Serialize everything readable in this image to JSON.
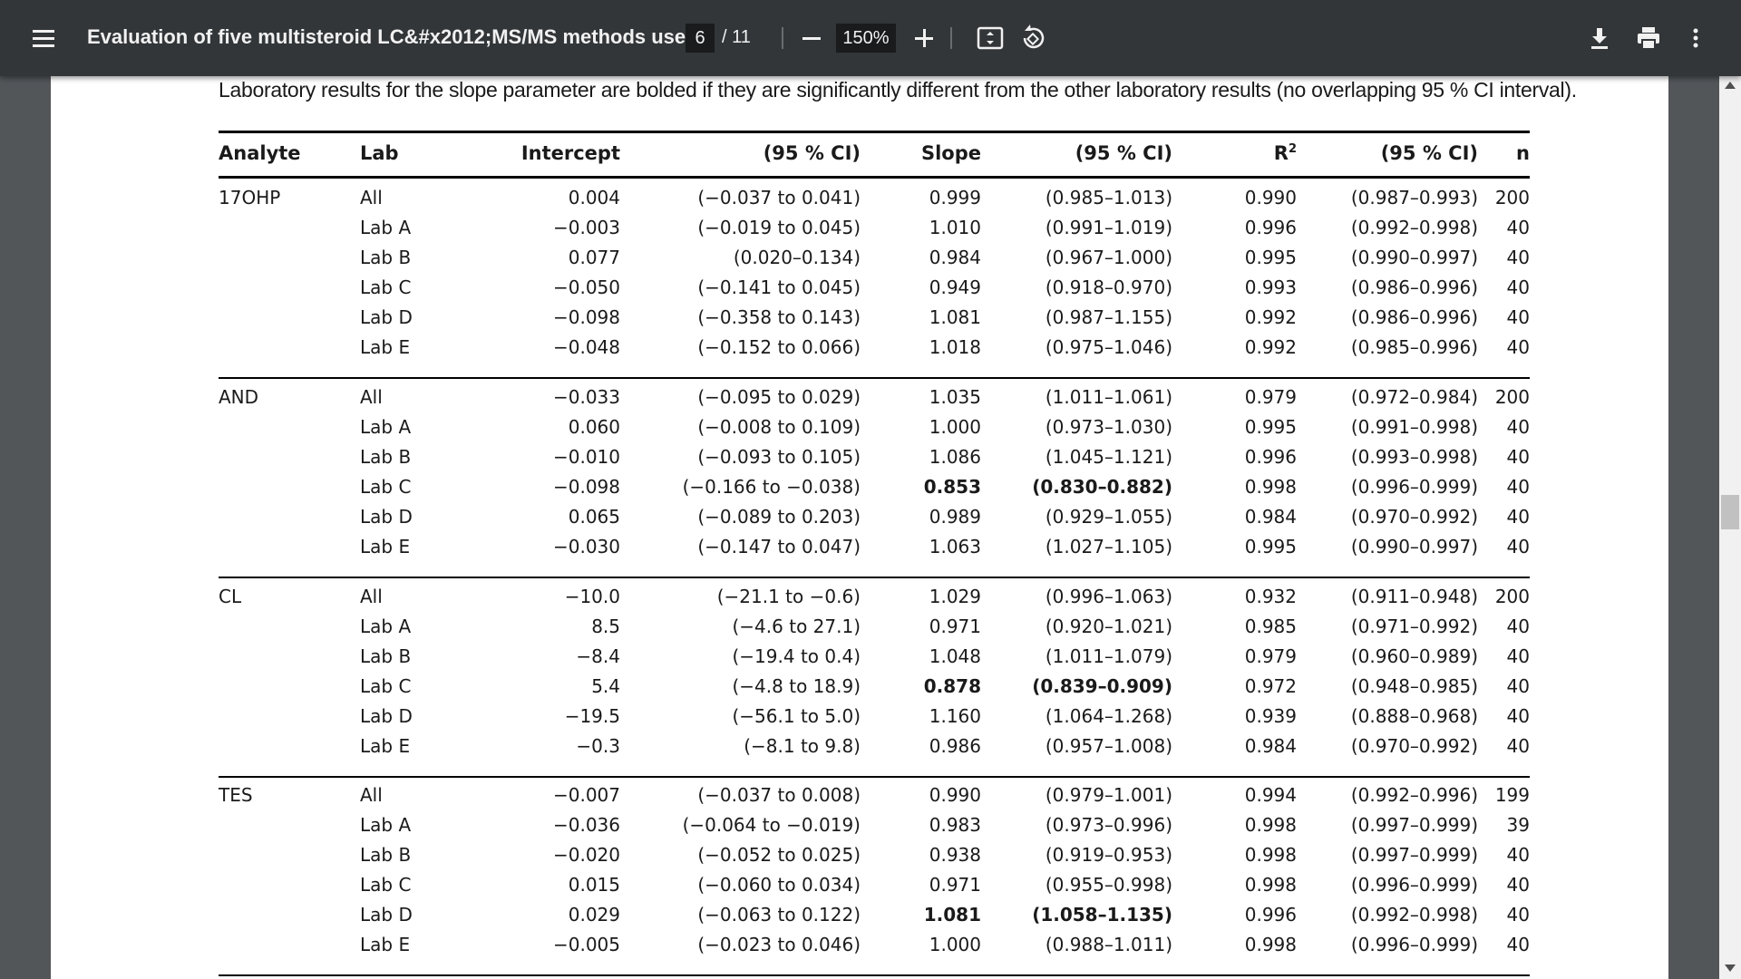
{
  "toolbar": {
    "title": "Evaluation of five multisteroid LC&#x2012;MS/MS methods used...",
    "page_current": "6",
    "page_total": "/ 11",
    "zoom": "150%",
    "icons": [
      "menu-icon",
      "zoom-out-icon",
      "zoom-in-icon",
      "fit-page-icon",
      "rotate-icon",
      "download-icon",
      "print-icon",
      "more-options-icon"
    ]
  },
  "caption": "Laboratory results for the slope parameter are bolded if they are significantly different from the other laboratory results (no overlapping 95 % CI interval).",
  "table": {
    "headers": [
      "Analyte",
      "Lab",
      "Intercept",
      "(95 % CI)",
      "Slope",
      "(95 % CI)",
      "R",
      "2",
      "(95 % CI)",
      "n"
    ],
    "groups": [
      {
        "analyte": "17OHP",
        "rows": [
          {
            "lab": "All",
            "intercept": "0.004",
            "intercept_ci": "(−0.037 to 0.041)",
            "slope": "0.999",
            "slope_ci": "(0.985–1.013)",
            "r2": "0.990",
            "r2_ci": "(0.987–0.993)",
            "n": "200",
            "bold": false
          },
          {
            "lab": "Lab A",
            "intercept": "−0.003",
            "intercept_ci": "(−0.019 to 0.045)",
            "slope": "1.010",
            "slope_ci": "(0.991–1.019)",
            "r2": "0.996",
            "r2_ci": "(0.992–0.998)",
            "n": "40",
            "bold": false
          },
          {
            "lab": "Lab B",
            "intercept": "0.077",
            "intercept_ci": "(0.020–0.134)",
            "slope": "0.984",
            "slope_ci": "(0.967–1.000)",
            "r2": "0.995",
            "r2_ci": "(0.990–0.997)",
            "n": "40",
            "bold": false
          },
          {
            "lab": "Lab C",
            "intercept": "−0.050",
            "intercept_ci": "(−0.141 to 0.045)",
            "slope": "0.949",
            "slope_ci": "(0.918–0.970)",
            "r2": "0.993",
            "r2_ci": "(0.986–0.996)",
            "n": "40",
            "bold": false
          },
          {
            "lab": "Lab D",
            "intercept": "−0.098",
            "intercept_ci": "(−0.358 to 0.143)",
            "slope": "1.081",
            "slope_ci": "(0.987–1.155)",
            "r2": "0.992",
            "r2_ci": "(0.986–0.996)",
            "n": "40",
            "bold": false
          },
          {
            "lab": "Lab E",
            "intercept": "−0.048",
            "intercept_ci": "(−0.152 to 0.066)",
            "slope": "1.018",
            "slope_ci": "(0.975–1.046)",
            "r2": "0.992",
            "r2_ci": "(0.985–0.996)",
            "n": "40",
            "bold": false
          }
        ]
      },
      {
        "analyte": "AND",
        "rows": [
          {
            "lab": "All",
            "intercept": "−0.033",
            "intercept_ci": "(−0.095 to 0.029)",
            "slope": "1.035",
            "slope_ci": "(1.011–1.061)",
            "r2": "0.979",
            "r2_ci": "(0.972–0.984)",
            "n": "200",
            "bold": false
          },
          {
            "lab": "Lab A",
            "intercept": "0.060",
            "intercept_ci": "(−0.008 to 0.109)",
            "slope": "1.000",
            "slope_ci": "(0.973–1.030)",
            "r2": "0.995",
            "r2_ci": "(0.991–0.998)",
            "n": "40",
            "bold": false
          },
          {
            "lab": "Lab B",
            "intercept": "−0.010",
            "intercept_ci": "(−0.093 to 0.105)",
            "slope": "1.086",
            "slope_ci": "(1.045–1.121)",
            "r2": "0.996",
            "r2_ci": "(0.993–0.998)",
            "n": "40",
            "bold": false
          },
          {
            "lab": "Lab C",
            "intercept": "−0.098",
            "intercept_ci": "(−0.166 to −0.038)",
            "slope": "0.853",
            "slope_ci": "(0.830–0.882)",
            "r2": "0.998",
            "r2_ci": "(0.996–0.999)",
            "n": "40",
            "bold": true
          },
          {
            "lab": "Lab D",
            "intercept": "0.065",
            "intercept_ci": "(−0.089 to 0.203)",
            "slope": "0.989",
            "slope_ci": "(0.929–1.055)",
            "r2": "0.984",
            "r2_ci": "(0.970–0.992)",
            "n": "40",
            "bold": false
          },
          {
            "lab": "Lab E",
            "intercept": "−0.030",
            "intercept_ci": "(−0.147 to 0.047)",
            "slope": "1.063",
            "slope_ci": "(1.027–1.105)",
            "r2": "0.995",
            "r2_ci": "(0.990–0.997)",
            "n": "40",
            "bold": false
          }
        ]
      },
      {
        "analyte": "CL",
        "rows": [
          {
            "lab": "All",
            "intercept": "−10.0",
            "intercept_ci": "(−21.1 to −0.6)",
            "slope": "1.029",
            "slope_ci": "(0.996–1.063)",
            "r2": "0.932",
            "r2_ci": "(0.911–0.948)",
            "n": "200",
            "bold": false
          },
          {
            "lab": "Lab A",
            "intercept": "8.5",
            "intercept_ci": "(−4.6 to 27.1)",
            "slope": "0.971",
            "slope_ci": "(0.920–1.021)",
            "r2": "0.985",
            "r2_ci": "(0.971–0.992)",
            "n": "40",
            "bold": false
          },
          {
            "lab": "Lab B",
            "intercept": "−8.4",
            "intercept_ci": "(−19.4 to 0.4)",
            "slope": "1.048",
            "slope_ci": "(1.011–1.079)",
            "r2": "0.979",
            "r2_ci": "(0.960–0.989)",
            "n": "40",
            "bold": false
          },
          {
            "lab": "Lab C",
            "intercept": "5.4",
            "intercept_ci": "(−4.8 to 18.9)",
            "slope": "0.878",
            "slope_ci": "(0.839–0.909)",
            "r2": "0.972",
            "r2_ci": "(0.948–0.985)",
            "n": "40",
            "bold": true
          },
          {
            "lab": "Lab D",
            "intercept": "−19.5",
            "intercept_ci": "(−56.1 to 5.0)",
            "slope": "1.160",
            "slope_ci": "(1.064–1.268)",
            "r2": "0.939",
            "r2_ci": "(0.888–0.968)",
            "n": "40",
            "bold": false
          },
          {
            "lab": "Lab E",
            "intercept": "−0.3",
            "intercept_ci": "(−8.1 to 9.8)",
            "slope": "0.986",
            "slope_ci": "(0.957–1.008)",
            "r2": "0.984",
            "r2_ci": "(0.970–0.992)",
            "n": "40",
            "bold": false
          }
        ]
      },
      {
        "analyte": "TES",
        "rows": [
          {
            "lab": "All",
            "intercept": "−0.007",
            "intercept_ci": "(−0.037 to 0.008)",
            "slope": "0.990",
            "slope_ci": "(0.979–1.001)",
            "r2": "0.994",
            "r2_ci": "(0.992–0.996)",
            "n": "199",
            "bold": false
          },
          {
            "lab": "Lab A",
            "intercept": "−0.036",
            "intercept_ci": "(−0.064 to −0.019)",
            "slope": "0.983",
            "slope_ci": "(0.973–0.996)",
            "r2": "0.998",
            "r2_ci": "(0.997–0.999)",
            "n": "39",
            "bold": false
          },
          {
            "lab": "Lab B",
            "intercept": "−0.020",
            "intercept_ci": "(−0.052 to 0.025)",
            "slope": "0.938",
            "slope_ci": "(0.919–0.953)",
            "r2": "0.998",
            "r2_ci": "(0.997–0.999)",
            "n": "40",
            "bold": false
          },
          {
            "lab": "Lab C",
            "intercept": "0.015",
            "intercept_ci": "(−0.060 to 0.034)",
            "slope": "0.971",
            "slope_ci": "(0.955–0.998)",
            "r2": "0.998",
            "r2_ci": "(0.996–0.999)",
            "n": "40",
            "bold": false
          },
          {
            "lab": "Lab D",
            "intercept": "0.029",
            "intercept_ci": "(−0.063 to 0.122)",
            "slope": "1.081",
            "slope_ci": "(1.058–1.135)",
            "r2": "0.996",
            "r2_ci": "(0.992–0.998)",
            "n": "40",
            "bold": true
          },
          {
            "lab": "Lab E",
            "intercept": "−0.005",
            "intercept_ci": "(−0.023 to 0.046)",
            "slope": "1.000",
            "slope_ci": "(0.988–1.011)",
            "r2": "0.998",
            "r2_ci": "(0.996–0.999)",
            "n": "40",
            "bold": false
          }
        ]
      }
    ]
  }
}
